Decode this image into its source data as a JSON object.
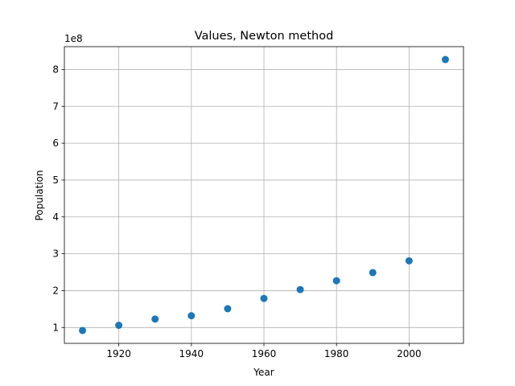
{
  "chart_data": {
    "type": "scatter",
    "title": "Values, Newton method",
    "xlabel": "Year",
    "ylabel": "Population",
    "y_offset_label": "1e8",
    "y_scale": 100000000,
    "x": [
      1910,
      1920,
      1930,
      1940,
      1950,
      1960,
      1970,
      1980,
      1990,
      2000,
      2010
    ],
    "y": [
      92000000,
      106000000,
      123000000,
      132000000,
      151000000,
      179000000,
      203000000,
      227000000,
      249000000,
      281000000,
      827000000
    ],
    "xlim": [
      1905,
      2015
    ],
    "ylim": [
      57000000,
      862000000
    ],
    "x_ticks": [
      1920,
      1940,
      1960,
      1980,
      2000
    ],
    "x_tick_labels": [
      "1920",
      "1940",
      "1960",
      "1980",
      "2000"
    ],
    "y_ticks": [
      100000000,
      200000000,
      300000000,
      400000000,
      500000000,
      600000000,
      700000000,
      800000000
    ],
    "y_tick_labels": [
      "1",
      "2",
      "3",
      "4",
      "5",
      "6",
      "7",
      "8"
    ],
    "grid": true,
    "marker_color": "#1f77b4"
  }
}
